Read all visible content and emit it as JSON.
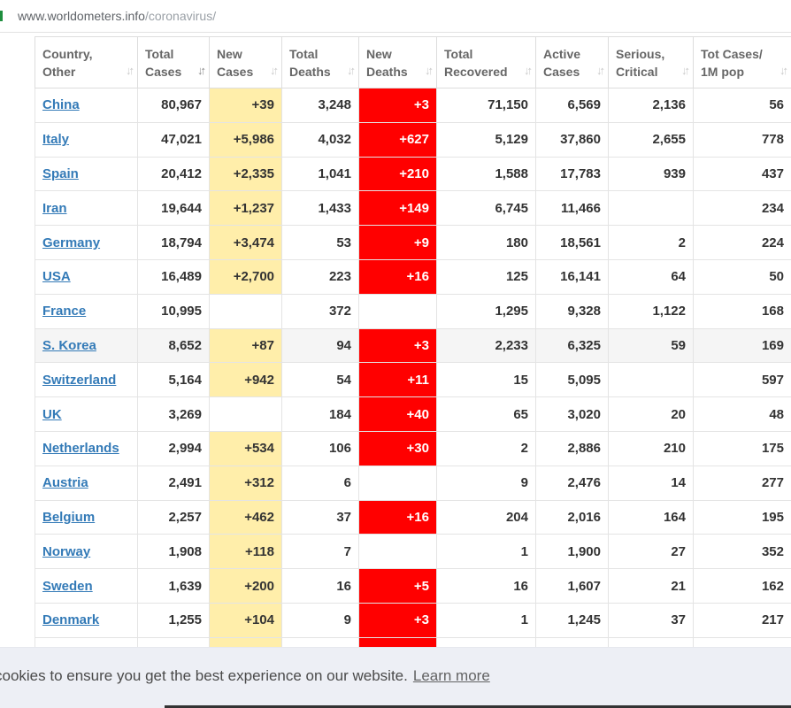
{
  "browser": {
    "url_host": "www.worldometers.info",
    "url_path": "/coronavirus/"
  },
  "table": {
    "headers": [
      {
        "line1": "Country,",
        "line2": "Other"
      },
      {
        "line1": "Total",
        "line2": "Cases"
      },
      {
        "line1": "New",
        "line2": "Cases"
      },
      {
        "line1": "Total",
        "line2": "Deaths"
      },
      {
        "line1": "New",
        "line2": "Deaths"
      },
      {
        "line1": "Total",
        "line2": "Recovered"
      },
      {
        "line1": "Active",
        "line2": "Cases"
      },
      {
        "line1": "Serious,",
        "line2": "Critical"
      },
      {
        "line1": "Tot Cases/",
        "line2": "1M pop"
      }
    ],
    "sorted_column": "Total Cases",
    "colors": {
      "new_cases_highlight": "#ffeeaa",
      "new_deaths_highlight": "#ff0000",
      "link": "#337ab7"
    },
    "rows": [
      {
        "country": "China",
        "total_cases": "80,967",
        "new_cases": "+39",
        "total_deaths": "3,248",
        "new_deaths": "+3",
        "total_recovered": "71,150",
        "active_cases": "6,569",
        "serious_critical": "2,136",
        "per_million": "56"
      },
      {
        "country": "Italy",
        "total_cases": "47,021",
        "new_cases": "+5,986",
        "total_deaths": "4,032",
        "new_deaths": "+627",
        "total_recovered": "5,129",
        "active_cases": "37,860",
        "serious_critical": "2,655",
        "per_million": "778"
      },
      {
        "country": "Spain",
        "total_cases": "20,412",
        "new_cases": "+2,335",
        "total_deaths": "1,041",
        "new_deaths": "+210",
        "total_recovered": "1,588",
        "active_cases": "17,783",
        "serious_critical": "939",
        "per_million": "437"
      },
      {
        "country": "Iran",
        "total_cases": "19,644",
        "new_cases": "+1,237",
        "total_deaths": "1,433",
        "new_deaths": "+149",
        "total_recovered": "6,745",
        "active_cases": "11,466",
        "serious_critical": "",
        "per_million": "234"
      },
      {
        "country": "Germany",
        "total_cases": "18,794",
        "new_cases": "+3,474",
        "total_deaths": "53",
        "new_deaths": "+9",
        "total_recovered": "180",
        "active_cases": "18,561",
        "serious_critical": "2",
        "per_million": "224"
      },
      {
        "country": "USA",
        "total_cases": "16,489",
        "new_cases": "+2,700",
        "total_deaths": "223",
        "new_deaths": "+16",
        "total_recovered": "125",
        "active_cases": "16,141",
        "serious_critical": "64",
        "per_million": "50"
      },
      {
        "country": "France",
        "total_cases": "10,995",
        "new_cases": "",
        "total_deaths": "372",
        "new_deaths": "",
        "total_recovered": "1,295",
        "active_cases": "9,328",
        "serious_critical": "1,122",
        "per_million": "168"
      },
      {
        "country": "S. Korea",
        "total_cases": "8,652",
        "new_cases": "+87",
        "total_deaths": "94",
        "new_deaths": "+3",
        "total_recovered": "2,233",
        "active_cases": "6,325",
        "serious_critical": "59",
        "per_million": "169"
      },
      {
        "country": "Switzerland",
        "total_cases": "5,164",
        "new_cases": "+942",
        "total_deaths": "54",
        "new_deaths": "+11",
        "total_recovered": "15",
        "active_cases": "5,095",
        "serious_critical": "",
        "per_million": "597"
      },
      {
        "country": "UK",
        "total_cases": "3,269",
        "new_cases": "",
        "total_deaths": "184",
        "new_deaths": "+40",
        "total_recovered": "65",
        "active_cases": "3,020",
        "serious_critical": "20",
        "per_million": "48"
      },
      {
        "country": "Netherlands",
        "total_cases": "2,994",
        "new_cases": "+534",
        "total_deaths": "106",
        "new_deaths": "+30",
        "total_recovered": "2",
        "active_cases": "2,886",
        "serious_critical": "210",
        "per_million": "175"
      },
      {
        "country": "Austria",
        "total_cases": "2,491",
        "new_cases": "+312",
        "total_deaths": "6",
        "new_deaths": "",
        "total_recovered": "9",
        "active_cases": "2,476",
        "serious_critical": "14",
        "per_million": "277"
      },
      {
        "country": "Belgium",
        "total_cases": "2,257",
        "new_cases": "+462",
        "total_deaths": "37",
        "new_deaths": "+16",
        "total_recovered": "204",
        "active_cases": "2,016",
        "serious_critical": "164",
        "per_million": "195"
      },
      {
        "country": "Norway",
        "total_cases": "1,908",
        "new_cases": "+118",
        "total_deaths": "7",
        "new_deaths": "",
        "total_recovered": "1",
        "active_cases": "1,900",
        "serious_critical": "27",
        "per_million": "352"
      },
      {
        "country": "Sweden",
        "total_cases": "1,639",
        "new_cases": "+200",
        "total_deaths": "16",
        "new_deaths": "+5",
        "total_recovered": "16",
        "active_cases": "1,607",
        "serious_critical": "21",
        "per_million": "162"
      },
      {
        "country": "Denmark",
        "total_cases": "1,255",
        "new_cases": "+104",
        "total_deaths": "9",
        "new_deaths": "+3",
        "total_recovered": "1",
        "active_cases": "1,245",
        "serious_critical": "37",
        "per_million": "217"
      },
      {
        "country": "",
        "total_cases": "",
        "new_cases": "+",
        "total_deaths": "",
        "new_deaths": "+",
        "total_recovered": "",
        "active_cases": "",
        "serious_critical": "",
        "per_million": ""
      }
    ]
  },
  "cookie_banner": {
    "message": "cookies to ensure you get the best experience on our website.",
    "link_label": "Learn more"
  }
}
